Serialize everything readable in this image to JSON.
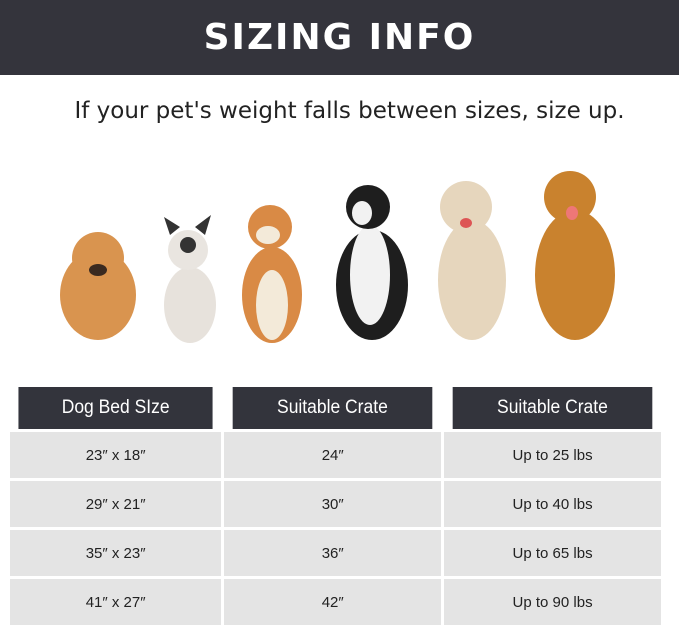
{
  "banner": {
    "title": "SIZING INFO"
  },
  "subtitle": "If your pet's weight falls between sizes, size up.",
  "dogs": [
    "pomeranian",
    "french-bulldog",
    "shiba-inu",
    "border-collie",
    "labrador",
    "golden-retriever"
  ],
  "colors": {
    "header_bg": "#34343c",
    "cell_bg": "#e4e4e4"
  },
  "table": {
    "headers": [
      "Dog Bed SIze",
      "Suitable Crate",
      "Suitable Crate"
    ],
    "rows": [
      [
        "23″ x 18″",
        "24″",
        "Up to 25 lbs"
      ],
      [
        "29″ x 21″",
        "30″",
        "Up to 40 lbs"
      ],
      [
        "35″ x 23″",
        "36″",
        "Up to 65 lbs"
      ],
      [
        "41″ x 27″",
        "42″",
        "Up to 90 lbs"
      ]
    ]
  }
}
